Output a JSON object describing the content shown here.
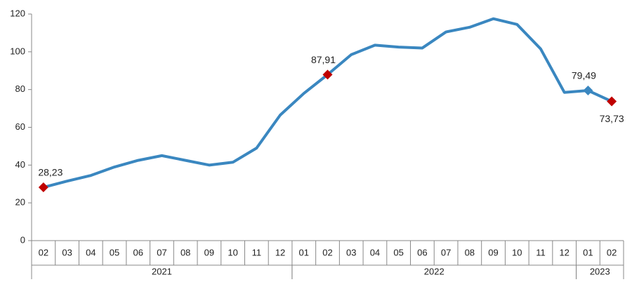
{
  "chart_data": {
    "type": "line",
    "categories": [
      "02",
      "03",
      "04",
      "05",
      "06",
      "07",
      "08",
      "09",
      "10",
      "11",
      "12",
      "01",
      "02",
      "03",
      "04",
      "05",
      "06",
      "07",
      "08",
      "09",
      "10",
      "11",
      "12",
      "01",
      "02"
    ],
    "groups": [
      {
        "name": "2021",
        "count": 11
      },
      {
        "name": "2022",
        "count": 12
      },
      {
        "name": "2023",
        "count": 2
      }
    ],
    "series": [
      {
        "color": "#3a87c0",
        "values": [
          28.23,
          31.5,
          34.5,
          39,
          42.5,
          45,
          42.5,
          40,
          41.5,
          49,
          66.5,
          78,
          87.91,
          98.5,
          103.5,
          102.5,
          102,
          110.5,
          113,
          117.5,
          114.5,
          101.5,
          78.5,
          79.49,
          73.73
        ],
        "value_labels": [
          "28,23",
          null,
          null,
          null,
          null,
          null,
          null,
          null,
          null,
          null,
          null,
          null,
          "87,91",
          null,
          null,
          null,
          null,
          null,
          null,
          null,
          null,
          null,
          null,
          "79,49",
          "73,73"
        ],
        "marker_colors": [
          "#c00000",
          null,
          null,
          null,
          null,
          null,
          null,
          null,
          null,
          null,
          null,
          null,
          "#c00000",
          null,
          null,
          null,
          null,
          null,
          null,
          null,
          null,
          null,
          null,
          "#3a87c0",
          "#c00000"
        ]
      }
    ],
    "ylim": [
      0,
      120
    ],
    "yticks": [
      0,
      20,
      40,
      60,
      80,
      100,
      120
    ],
    "grid": false
  }
}
